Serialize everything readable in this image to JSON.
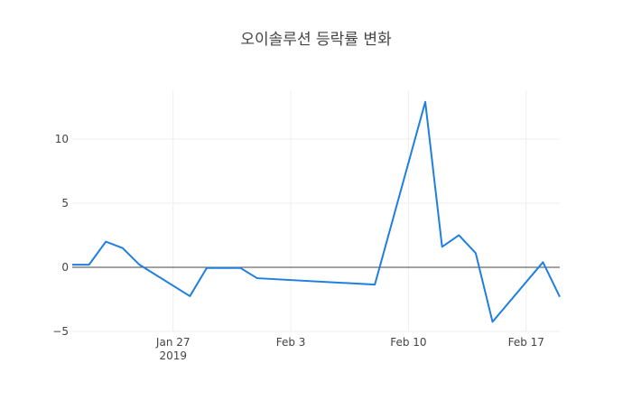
{
  "chart_data": {
    "type": "line",
    "title": "오이솔루션 등락률 변화",
    "x": [
      "2019-01-21",
      "2019-01-22",
      "2019-01-23",
      "2019-01-24",
      "2019-01-25",
      "2019-01-28",
      "2019-01-29",
      "2019-01-30",
      "2019-01-31",
      "2019-02-01",
      "2019-02-08",
      "2019-02-11",
      "2019-02-12",
      "2019-02-13",
      "2019-02-14",
      "2019-02-15",
      "2019-02-18",
      "2019-02-19"
    ],
    "series": [
      {
        "color": "#1f7fe0",
        "values": [
          0.2,
          0.2,
          2.0,
          1.5,
          0.2,
          -2.25,
          -0.05,
          -0.05,
          -0.05,
          -0.85,
          -1.35,
          12.9,
          1.6,
          2.5,
          1.1,
          -4.25,
          0.4,
          -2.3
        ]
      }
    ],
    "xlim": [
      "2019-01-21",
      "2019-02-19"
    ],
    "xticks": [
      {
        "value": "2019-01-27",
        "label": "Jan 27\n2019"
      },
      {
        "value": "2019-02-03",
        "label": "Feb 3"
      },
      {
        "value": "2019-02-10",
        "label": "Feb 10"
      },
      {
        "value": "2019-02-17",
        "label": "Feb 17"
      }
    ],
    "ylim": [
      -5,
      13.8
    ],
    "yticks": [
      {
        "value": -5,
        "label": "−5"
      },
      0,
      5,
      10
    ],
    "grid": true
  }
}
